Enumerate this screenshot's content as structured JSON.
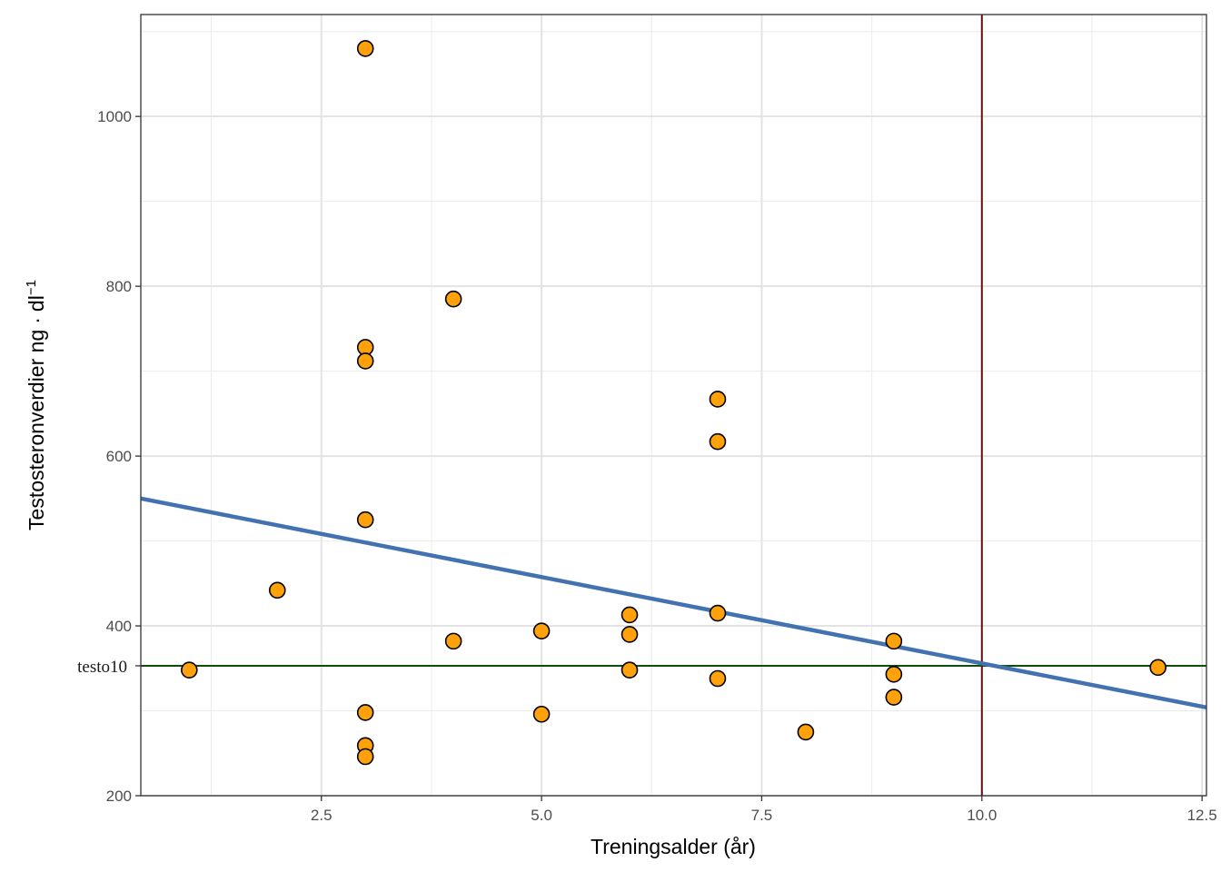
{
  "chart_data": {
    "type": "scatter",
    "title": "",
    "xlabel": "Treningsalder (år)",
    "ylabel": {
      "main": "Testosteronverdier ng",
      "dot": "·",
      "unit": "dl",
      "exponent": "−1"
    },
    "xlim": [
      0.45,
      12.55
    ],
    "ylim": [
      200,
      1120
    ],
    "x_major_ticks": [
      2.5,
      5.0,
      7.5,
      10.0,
      12.5
    ],
    "x_tick_labels": [
      "2.5",
      "5.0",
      "7.5",
      "10.0",
      "12.5"
    ],
    "x_minor_ticks": [
      1.25,
      3.75,
      6.25,
      8.75,
      11.25
    ],
    "y_major_ticks": [
      200,
      400,
      600,
      800,
      1000
    ],
    "y_tick_labels": [
      "200",
      "400",
      "600",
      "800",
      "1000"
    ],
    "y_minor_ticks": [
      300,
      500,
      700,
      900,
      1100
    ],
    "grid": true,
    "points": [
      {
        "x": 1,
        "y": 348
      },
      {
        "x": 2,
        "y": 442
      },
      {
        "x": 3,
        "y": 1080
      },
      {
        "x": 3,
        "y": 728
      },
      {
        "x": 3,
        "y": 712
      },
      {
        "x": 3,
        "y": 525
      },
      {
        "x": 3,
        "y": 298
      },
      {
        "x": 3,
        "y": 259
      },
      {
        "x": 3,
        "y": 246
      },
      {
        "x": 4,
        "y": 785
      },
      {
        "x": 4,
        "y": 382
      },
      {
        "x": 5,
        "y": 394
      },
      {
        "x": 5,
        "y": 296
      },
      {
        "x": 6,
        "y": 413
      },
      {
        "x": 6,
        "y": 390
      },
      {
        "x": 6,
        "y": 348
      },
      {
        "x": 7,
        "y": 667
      },
      {
        "x": 7,
        "y": 617
      },
      {
        "x": 7,
        "y": 415
      },
      {
        "x": 7,
        "y": 338
      },
      {
        "x": 8,
        "y": 275
      },
      {
        "x": 9,
        "y": 382
      },
      {
        "x": 9,
        "y": 343
      },
      {
        "x": 9,
        "y": 316
      },
      {
        "x": 12,
        "y": 351
      }
    ],
    "regression_line": {
      "x": [
        0.45,
        12.55
      ],
      "y": [
        550,
        304
      ],
      "color": "#4272b0"
    },
    "vline": {
      "x": 10,
      "color": "#6b0f0f"
    },
    "hline": {
      "y": 353,
      "label": "testo10",
      "color": "#0f4d0f"
    },
    "point_fill": "#ffa10a",
    "point_stroke": "#000000"
  }
}
